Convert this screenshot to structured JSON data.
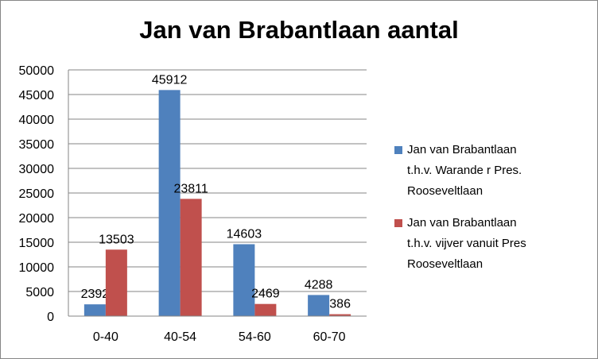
{
  "chart_data": {
    "type": "bar",
    "title": "Jan van Brabantlaan aantal",
    "categories": [
      "0-40",
      "40-54",
      "54-60",
      "60-70"
    ],
    "series": [
      {
        "name": "Jan van Brabantlaan t.h.v. Warande r Pres. Rooseveltlaan",
        "values": [
          2392,
          45912,
          14603,
          4288
        ],
        "color": "#4F81BD"
      },
      {
        "name": "Jan van Brabantlaan t.h.v. vijver vanuit Pres Rooseveltlaan",
        "values": [
          13503,
          23811,
          2469,
          386
        ],
        "color": "#C0504D"
      }
    ],
    "xlabel": "",
    "ylabel": "",
    "ylim": [
      0,
      50000
    ],
    "yticks": [
      0,
      5000,
      10000,
      15000,
      20000,
      25000,
      30000,
      35000,
      40000,
      45000,
      50000
    ],
    "grid": true,
    "legend_position": "right",
    "data_labels": true
  }
}
